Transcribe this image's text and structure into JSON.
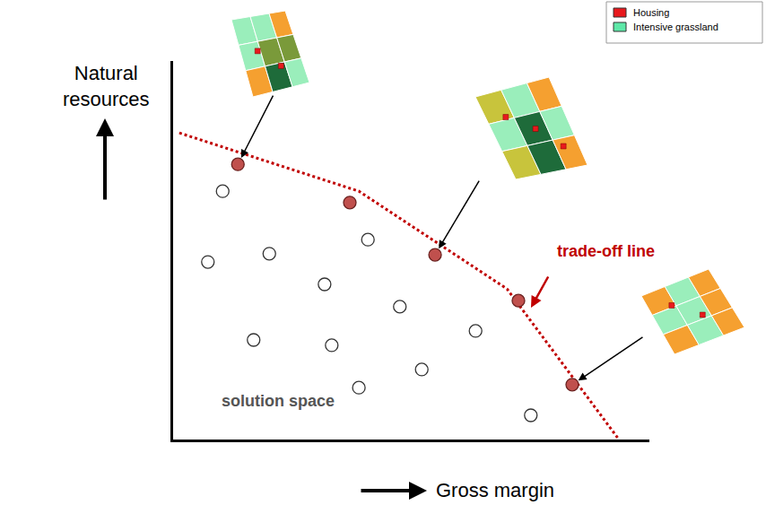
{
  "chart_data": {
    "type": "scatter",
    "x_label": "Gross margin",
    "y_label": "Natural resources",
    "xlim": [
      0,
      100
    ],
    "ylim": [
      0,
      100
    ],
    "xticks": [],
    "yticks": [],
    "tick_labels": false,
    "grid": false,
    "series": [
      {
        "type": "line",
        "line_style": "dot",
        "color": "#c00000",
        "x": [
          1.3,
          39.0,
          70.1,
          93.6
        ],
        "y": [
          81.0,
          65.6,
          39.8,
          0
        ]
      },
      {
        "type": "scatter",
        "marker": "circle",
        "color": "#c0504d",
        "x": [
          13.6,
          37.1,
          55.0,
          72.5,
          83.8
        ],
        "y": [
          72.7,
          62.6,
          48.8,
          36.7,
          14.5
        ]
      },
      {
        "type": "scatter",
        "marker": "circle",
        "color": "#ffffff",
        "x": [
          10.4,
          7.3,
          20.2,
          31.8,
          40.9,
          47.6,
          63.5,
          16.9,
          33.3,
          52.2,
          39.0,
          75.1
        ],
        "y": [
          65.6,
          46.9,
          49.1,
          41.0,
          52.8,
          35.1,
          28.7,
          26.3,
          24.9,
          18.5,
          13.7,
          6.4
        ]
      }
    ],
    "annotations": [
      {
        "text": "trade-off line",
        "x": 90.8,
        "y": 49.8,
        "color": "#c00000"
      },
      {
        "text": "solution space",
        "x": 22.0,
        "y": 10.2,
        "color": "#555555"
      }
    ]
  },
  "map_legend": [
    {
      "label": "Housing",
      "color": "#e8191d"
    },
    {
      "label": "Intensive grassland",
      "color": "#5ee8a8"
    }
  ]
}
